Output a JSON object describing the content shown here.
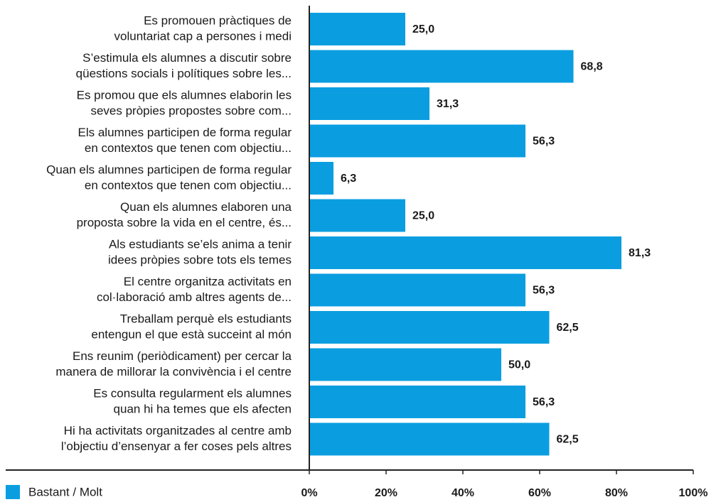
{
  "chart_data": {
    "type": "bar",
    "orientation": "horizontal",
    "categories": [
      [
        "Es promouen pràctiques de",
        "voluntariat cap a persones i medi"
      ],
      [
        "S’estimula els alumnes a discutir sobre",
        "qüestions socials i polítiques sobre les..."
      ],
      [
        "Es promou que els alumnes elaborin les",
        "seves pròpies propostes sobre com..."
      ],
      [
        "Els alumnes participen de forma regular",
        "en contextos que tenen com objectiu..."
      ],
      [
        "Quan els alumnes participen de forma regular",
        "en contextos que tenen com objectiu..."
      ],
      [
        "Quan els alumnes elaboren una",
        "proposta sobre la vida en el centre, és..."
      ],
      [
        "Als estudiants se’els anima a tenir",
        "idees pròpies sobre tots els temes"
      ],
      [
        "El centre organitza activitats en",
        "col·laboració amb altres agents de..."
      ],
      [
        "Treballam perquè els estudiants",
        "entengun el que està succeint al món"
      ],
      [
        "Ens reunim (periòdicament) per cercar la",
        "manera de millorar la convivència i el centre"
      ],
      [
        "Es consulta regularment els alumnes",
        "quan hi ha temes que els afecten"
      ],
      [
        "Hi ha  activitats organitzades al centre amb",
        "l’objectiu d’ensenyar a fer coses pels altres"
      ]
    ],
    "series": [
      {
        "name": "Bastant / Molt",
        "color": "#0a9ee0",
        "values": [
          25,
          68.8,
          31.3,
          56.3,
          6.3,
          25,
          81.3,
          56.3,
          62.5,
          50,
          56.3,
          62.5
        ],
        "value_labels": [
          "25,0",
          "68,8",
          "31,3",
          "56,3",
          "6,3",
          "25,0",
          "81,3",
          "56,3",
          "62,5",
          "50,0",
          "56,3",
          "62,5"
        ]
      }
    ],
    "xlim": [
      0,
      100
    ],
    "xticks": [
      {
        "value": 0,
        "label": "0%"
      },
      {
        "value": 20,
        "label": "20%"
      },
      {
        "value": 40,
        "label": "40%"
      },
      {
        "value": 60,
        "label": "60%"
      },
      {
        "value": 80,
        "label": "80%"
      },
      {
        "value": 100,
        "label": "100%"
      }
    ],
    "legend": "bottom-left"
  }
}
